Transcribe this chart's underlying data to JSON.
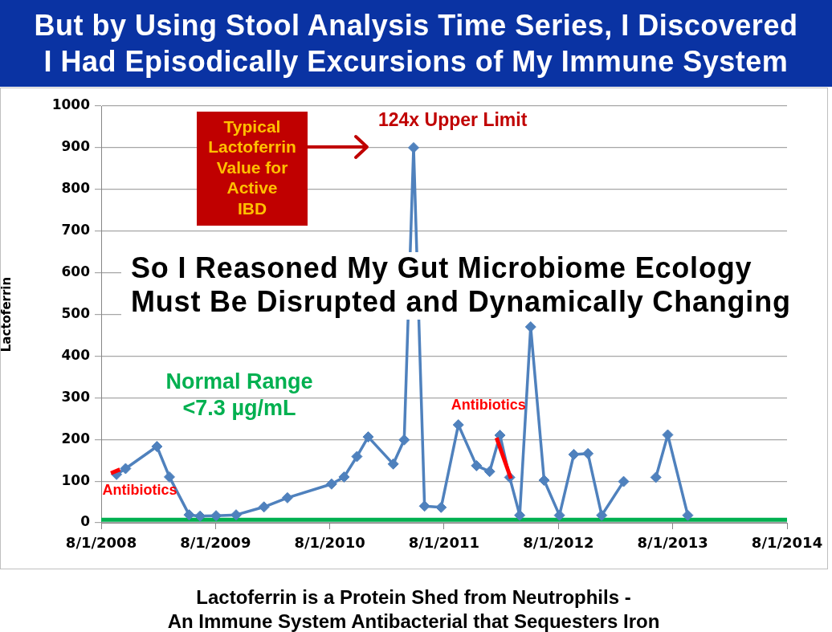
{
  "chart_data": {
    "type": "line",
    "title": "But by Using Stool Analysis Time Series, I Discovered\nI Had Episodically Excursions of My Immune System",
    "ylabel": "Lactoferrin",
    "x": [
      "2008-09-19",
      "2008-10-18",
      "2009-01-26",
      "2009-03-07",
      "2009-05-09",
      "2009-06-13",
      "2009-08-03",
      "2009-10-06",
      "2010-01-03",
      "2010-03-19",
      "2010-08-07",
      "2010-09-16",
      "2010-10-27",
      "2010-12-02",
      "2011-02-20",
      "2011-03-27",
      "2011-04-26",
      "2011-05-31",
      "2011-07-23",
      "2011-09-16",
      "2011-11-13",
      "2011-12-25",
      "2012-01-27",
      "2012-02-27",
      "2012-03-30",
      "2012-05-04",
      "2012-06-16",
      "2012-08-04",
      "2012-09-19",
      "2012-11-03",
      "2012-12-17",
      "2013-02-25",
      "2013-04-29",
      "2013-06-08",
      "2013-07-16",
      "2013-09-18"
    ],
    "series": [
      {
        "color": "#4f81bd",
        "values": [
          116,
          130,
          183,
          110,
          19,
          16,
          17,
          19,
          38,
          60,
          93,
          110,
          159,
          206,
          141,
          199,
          900,
          40,
          37,
          235,
          137,
          123,
          210,
          109,
          18,
          470,
          102,
          18,
          164,
          166,
          18,
          99,
          null,
          109,
          211,
          18
        ]
      },
      {
        "type": "line",
        "color": "#ff0000",
        "marker": "none",
        "x": [
          "2008-09-01",
          "2008-09-30"
        ],
        "values": [
          119,
          128
        ]
      },
      {
        "type": "line",
        "color": "#ff0000",
        "marker": "none",
        "x": [
          "2012-01-16",
          "2012-03-02"
        ],
        "values": [
          204,
          106
        ]
      }
    ],
    "xlim": [
      "2008-08-01",
      "2014-08-01"
    ],
    "xticks": [
      {
        "value": "2008-08-01",
        "label": "8/1/2008"
      },
      {
        "value": "2009-08-01",
        "label": "8/1/2009"
      },
      {
        "value": "2010-08-01",
        "label": "8/1/2010"
      },
      {
        "value": "2011-08-01",
        "label": "8/1/2011"
      },
      {
        "value": "2012-08-01",
        "label": "8/1/2012"
      },
      {
        "value": "2013-08-01",
        "label": "8/1/2013"
      },
      {
        "value": "2014-08-01",
        "label": "8/1/2014"
      }
    ],
    "ylim": [
      0,
      1000
    ],
    "yticks": [
      0,
      100,
      200,
      300,
      400,
      500,
      600,
      700,
      800,
      900,
      1000
    ],
    "grid": "y",
    "legend": false,
    "marker": "diamond",
    "ref_lines": [
      {
        "axis": "y",
        "value": 7.3,
        "label": "Normal Range\n<7.3 µg/mL",
        "color": "#00b050"
      }
    ],
    "annotations": [
      "Typical\nLactoferrin\nValue for\nActive\nIBD",
      {
        "text": "124x Upper Limit",
        "x": "2011-04-26",
        "y": 900
      },
      "So I Reasoned My Gut Microbiome Ecology\nMust Be Disrupted and Dynamically Changing",
      {
        "text": "Antibiotics",
        "x": "2012-01-16",
        "y": 204
      },
      {
        "text": "Antibiotics",
        "x": "2008-09-01",
        "y": 119
      },
      "Lactoferrin is a Protein Shed from Neutrophils -\nAn Immune System Antibacterial that Sequesters Iron"
    ]
  }
}
